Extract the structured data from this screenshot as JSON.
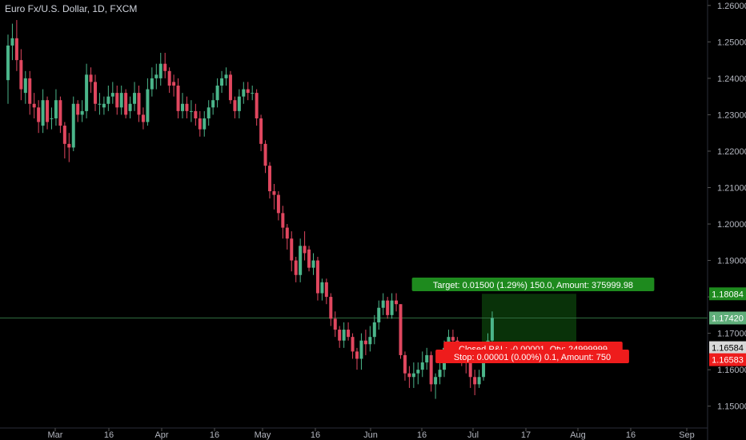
{
  "header": {
    "title": "Euro Fx/U.S. Dollar, 1D, FXCM"
  },
  "colors": {
    "background": "#000000",
    "up": "#4bb58a",
    "down": "#e0475f",
    "axis_text": "#b2b5be",
    "target_fill": "#0b3b0b",
    "target_label": "#1e8a1e",
    "stop_label": "#ee1c1c",
    "crosshair": "#2e6b3e"
  },
  "position": {
    "target_label": "Target: 0.01500 (1.29%) 150.0, Amount: 375999.98",
    "stop_label": "Stop: 0.00001 (0.00%) 0.1, Amount: 750",
    "closed_label": "Closed P&L: -0.00001, Qty: 24999999",
    "entry": 1.16584,
    "target": 1.18084,
    "stop": 1.16583
  },
  "chart_data": {
    "type": "candlestick",
    "title": "Euro Fx/U.S. Dollar, 1D, FXCM",
    "ylim": [
      1.144,
      1.2615
    ],
    "y_ticks": [
      "1.26000",
      "1.25000",
      "1.24000",
      "1.23000",
      "1.22000",
      "1.21000",
      "1.20000",
      "1.19000",
      "1.18000",
      "1.17000",
      "1.16000",
      "1.15000"
    ],
    "x_ticks": [
      "Mar",
      "16",
      "Apr",
      "16",
      "May",
      "16",
      "Jun",
      "16",
      "Jul",
      "17",
      "Aug",
      "16",
      "Sep"
    ],
    "price_tags": [
      {
        "text": "1.18084",
        "value": 1.18084,
        "kind": "target"
      },
      {
        "text": "1.17420",
        "value": 1.1742,
        "kind": "last"
      },
      {
        "text": "1.16584",
        "value": 1.16584,
        "kind": "entry"
      },
      {
        "text": "1.16583",
        "value": 1.16583,
        "kind": "stop"
      }
    ],
    "candles": {
      "open": [
        1.2395,
        1.249,
        1.251,
        1.245,
        1.236,
        1.24,
        1.233,
        1.232,
        1.227,
        1.234,
        1.229,
        1.229,
        1.234,
        1.227,
        1.222,
        1.221,
        1.233,
        1.23,
        1.231,
        1.241,
        1.239,
        1.233,
        1.232,
        1.233,
        1.235,
        1.236,
        1.232,
        1.236,
        1.231,
        1.233,
        1.236,
        1.23,
        1.228,
        1.237,
        1.24,
        1.24,
        1.244,
        1.242,
        1.239,
        1.238,
        1.231,
        1.233,
        1.231,
        1.231,
        1.229,
        1.226,
        1.229,
        1.232,
        1.234,
        1.238,
        1.24,
        1.241,
        1.234,
        1.231,
        1.235,
        1.237,
        1.236,
        1.236,
        1.229,
        1.222,
        1.216,
        1.209,
        1.208,
        1.203,
        1.199,
        1.196,
        1.19,
        1.186,
        1.194,
        1.193,
        1.188,
        1.19,
        1.181,
        1.184,
        1.18,
        1.174,
        1.171,
        1.168,
        1.171,
        1.169,
        1.165,
        1.163,
        1.168,
        1.167,
        1.169,
        1.173,
        1.177,
        1.179,
        1.175,
        1.179,
        1.178,
        1.164,
        1.159,
        1.158,
        1.159,
        1.16,
        1.162,
        1.164,
        1.156,
        1.158,
        1.16,
        1.166,
        1.169,
        1.168,
        1.165,
        1.164,
        1.162,
        1.158,
        1.156,
        1.158,
        1.164,
        1.168
      ],
      "close": [
        1.249,
        1.251,
        1.245,
        1.237,
        1.24,
        1.233,
        1.232,
        1.228,
        1.234,
        1.228,
        1.229,
        1.234,
        1.227,
        1.222,
        1.221,
        1.233,
        1.23,
        1.231,
        1.241,
        1.239,
        1.233,
        1.233,
        1.233,
        1.235,
        1.236,
        1.232,
        1.236,
        1.23,
        1.233,
        1.236,
        1.23,
        1.228,
        1.237,
        1.24,
        1.241,
        1.244,
        1.242,
        1.238,
        1.238,
        1.231,
        1.233,
        1.231,
        1.231,
        1.229,
        1.226,
        1.229,
        1.232,
        1.234,
        1.238,
        1.24,
        1.241,
        1.234,
        1.231,
        1.235,
        1.237,
        1.236,
        1.236,
        1.229,
        1.222,
        1.216,
        1.209,
        1.208,
        1.203,
        1.199,
        1.196,
        1.19,
        1.186,
        1.194,
        1.192,
        1.188,
        1.19,
        1.181,
        1.184,
        1.18,
        1.174,
        1.171,
        1.168,
        1.171,
        1.169,
        1.165,
        1.163,
        1.168,
        1.167,
        1.169,
        1.173,
        1.177,
        1.179,
        1.175,
        1.179,
        1.178,
        1.164,
        1.159,
        1.158,
        1.159,
        1.16,
        1.162,
        1.164,
        1.156,
        1.158,
        1.16,
        1.166,
        1.169,
        1.168,
        1.165,
        1.164,
        1.162,
        1.158,
        1.156,
        1.158,
        1.164,
        1.168,
        1.1742
      ],
      "high": [
        1.252,
        1.255,
        1.256,
        1.248,
        1.242,
        1.242,
        1.236,
        1.234,
        1.237,
        1.235,
        1.232,
        1.237,
        1.235,
        1.228,
        1.225,
        1.235,
        1.234,
        1.234,
        1.244,
        1.243,
        1.241,
        1.236,
        1.235,
        1.238,
        1.239,
        1.238,
        1.238,
        1.237,
        1.235,
        1.239,
        1.238,
        1.232,
        1.24,
        1.243,
        1.244,
        1.247,
        1.247,
        1.243,
        1.241,
        1.24,
        1.236,
        1.235,
        1.234,
        1.233,
        1.231,
        1.231,
        1.234,
        1.236,
        1.24,
        1.242,
        1.243,
        1.242,
        1.235,
        1.237,
        1.239,
        1.239,
        1.238,
        1.237,
        1.23,
        1.223,
        1.217,
        1.211,
        1.209,
        1.205,
        1.2,
        1.198,
        1.191,
        1.196,
        1.198,
        1.194,
        1.192,
        1.191,
        1.185,
        1.185,
        1.181,
        1.176,
        1.172,
        1.173,
        1.173,
        1.17,
        1.166,
        1.17,
        1.171,
        1.172,
        1.175,
        1.179,
        1.181,
        1.18,
        1.181,
        1.181,
        1.178,
        1.165,
        1.161,
        1.162,
        1.162,
        1.165,
        1.166,
        1.165,
        1.159,
        1.162,
        1.168,
        1.171,
        1.171,
        1.169,
        1.167,
        1.165,
        1.163,
        1.16,
        1.16,
        1.165,
        1.17,
        1.176
      ],
      "low": [
        1.233,
        1.245,
        1.242,
        1.234,
        1.233,
        1.23,
        1.229,
        1.225,
        1.225,
        1.226,
        1.226,
        1.227,
        1.225,
        1.218,
        1.217,
        1.22,
        1.228,
        1.228,
        1.229,
        1.236,
        1.231,
        1.23,
        1.23,
        1.231,
        1.233,
        1.23,
        1.23,
        1.229,
        1.229,
        1.231,
        1.228,
        1.226,
        1.227,
        1.235,
        1.237,
        1.238,
        1.24,
        1.236,
        1.235,
        1.229,
        1.229,
        1.229,
        1.228,
        1.227,
        1.224,
        1.224,
        1.227,
        1.23,
        1.232,
        1.236,
        1.238,
        1.233,
        1.229,
        1.229,
        1.233,
        1.234,
        1.234,
        1.227,
        1.22,
        1.214,
        1.207,
        1.204,
        1.201,
        1.196,
        1.193,
        1.187,
        1.184,
        1.184,
        1.19,
        1.187,
        1.186,
        1.179,
        1.179,
        1.178,
        1.172,
        1.169,
        1.166,
        1.166,
        1.168,
        1.163,
        1.16,
        1.16,
        1.164,
        1.165,
        1.167,
        1.171,
        1.175,
        1.174,
        1.174,
        1.176,
        1.163,
        1.157,
        1.155,
        1.155,
        1.156,
        1.158,
        1.16,
        1.154,
        1.152,
        1.156,
        1.158,
        1.164,
        1.166,
        1.162,
        1.161,
        1.159,
        1.155,
        1.153,
        1.155,
        1.157,
        1.162,
        1.166
      ]
    }
  }
}
